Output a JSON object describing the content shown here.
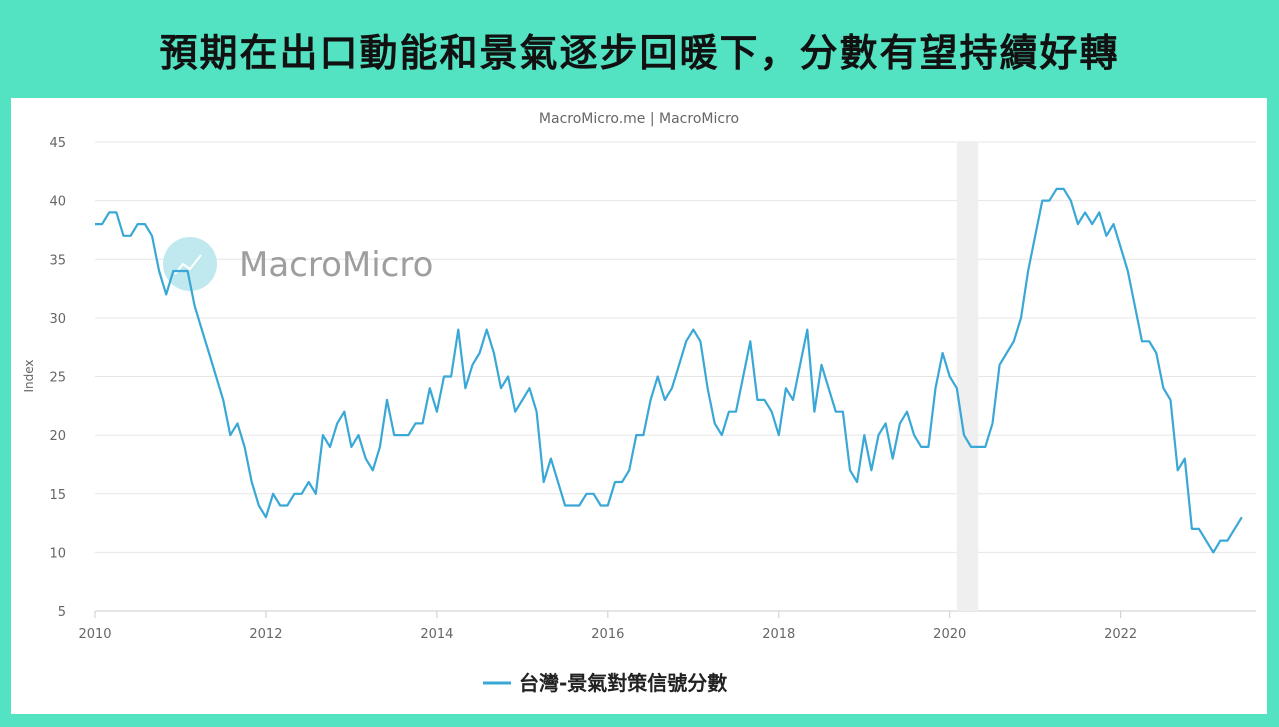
{
  "page": {
    "title": "預期在出口動能和景氣逐步回暖下，分數有望持續好轉",
    "credit": "MacroMicro.me | MacroMicro",
    "watermark": "MacroMicro",
    "colors": {
      "background": "#53e2c2",
      "line": "#3aa8d6",
      "recession": "#efefef"
    }
  },
  "chart_data": {
    "type": "line",
    "ylabel": "Index",
    "ylim": [
      5,
      45
    ],
    "yticks": [
      5,
      10,
      15,
      20,
      25,
      30,
      35,
      40,
      45
    ],
    "xlim": [
      "2010-01",
      "2023-08"
    ],
    "xticks": [
      "2010",
      "2012",
      "2014",
      "2016",
      "2018",
      "2020",
      "2022"
    ],
    "grid": true,
    "legend": "bottom-center",
    "shaded_ranges": [
      [
        "2020-02",
        "2020-04"
      ]
    ],
    "series": [
      {
        "name": "台灣-景氣對策信號分數",
        "x_start": "2010-01",
        "frequency": "monthly",
        "values": [
          38,
          38,
          39,
          39,
          37,
          37,
          38,
          38,
          37,
          34,
          32,
          34,
          34,
          34,
          31,
          29,
          27,
          25,
          23,
          20,
          21,
          19,
          16,
          14,
          13,
          15,
          14,
          14,
          15,
          15,
          16,
          15,
          20,
          19,
          21,
          22,
          19,
          20,
          18,
          17,
          19,
          23,
          20,
          20,
          20,
          21,
          21,
          24,
          22,
          25,
          25,
          29,
          24,
          26,
          27,
          29,
          27,
          24,
          25,
          22,
          23,
          24,
          22,
          16,
          18,
          16,
          14,
          14,
          14,
          15,
          15,
          14,
          14,
          16,
          16,
          17,
          20,
          20,
          23,
          25,
          23,
          24,
          26,
          28,
          29,
          28,
          24,
          21,
          20,
          22,
          22,
          25,
          28,
          23,
          23,
          22,
          20,
          24,
          23,
          26,
          29,
          22,
          26,
          24,
          22,
          22,
          17,
          16,
          20,
          17,
          20,
          21,
          18,
          21,
          22,
          20,
          19,
          19,
          24,
          27,
          25,
          24,
          20,
          19,
          19,
          19,
          21,
          26,
          27,
          28,
          30,
          34,
          37,
          40,
          40,
          41,
          41,
          40,
          38,
          39,
          38,
          39,
          37,
          38,
          36,
          34,
          31,
          28,
          28,
          27,
          24,
          23,
          17,
          18,
          12,
          12,
          11,
          10,
          11,
          11,
          12,
          13
        ]
      }
    ]
  }
}
